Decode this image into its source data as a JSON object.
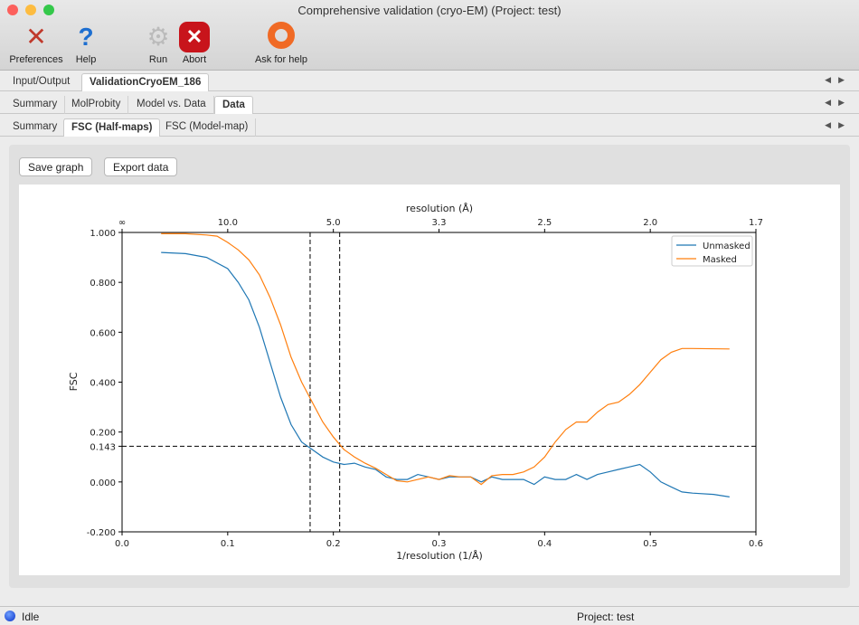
{
  "window": {
    "title": "Comprehensive validation (cryo-EM) (Project: test)"
  },
  "toolbar": [
    {
      "label": "Preferences",
      "icon": "tools-icon"
    },
    {
      "label": "Help",
      "icon": "help-icon"
    },
    {
      "label": "Run",
      "icon": "gear-icon"
    },
    {
      "label": "Abort",
      "icon": "abort-icon"
    },
    {
      "label": "Ask for help",
      "icon": "lifebuoy-icon"
    }
  ],
  "tabs1": [
    "Input/Output",
    "ValidationCryoEM_186"
  ],
  "tabs2": [
    "Summary",
    "MolProbity",
    "Model vs. Data",
    "Data"
  ],
  "tabs3": [
    "Summary",
    "FSC (Half-maps)",
    "FSC (Model-map)"
  ],
  "buttons": {
    "save": "Save graph",
    "export": "Export data"
  },
  "status": {
    "state": "Idle",
    "project": "Project: test"
  },
  "chart_data": {
    "type": "line",
    "xlabel": "1/resolution (1/Å)",
    "ylabel": "FSC",
    "top_xlabel": "resolution (Å)",
    "xlim": [
      0,
      0.6
    ],
    "ylim": [
      -0.2,
      1.0
    ],
    "xticks": [
      "0.0",
      "0.1",
      "0.2",
      "0.3",
      "0.4",
      "0.5",
      "0.6"
    ],
    "yticks": [
      "-0.200",
      "0.000",
      "0.200",
      "0.400",
      "0.600",
      "0.800",
      "1.000"
    ],
    "top_xticks": [
      "∞",
      "10.0",
      "5.0",
      "3.3",
      "2.5",
      "2.0",
      "1.7"
    ],
    "threshold": {
      "y": 0.143,
      "label": "0.143"
    },
    "vlines": [
      0.178,
      0.206
    ],
    "legend": "top-right",
    "colors": {
      "Unmasked": "#1f77b4",
      "Masked": "#ff7f0e"
    },
    "series": [
      {
        "name": "Unmasked",
        "x": [
          0.037,
          0.06,
          0.08,
          0.1,
          0.11,
          0.12,
          0.13,
          0.14,
          0.15,
          0.16,
          0.17,
          0.18,
          0.19,
          0.2,
          0.21,
          0.22,
          0.23,
          0.24,
          0.25,
          0.26,
          0.27,
          0.28,
          0.29,
          0.3,
          0.31,
          0.32,
          0.33,
          0.34,
          0.35,
          0.36,
          0.37,
          0.38,
          0.39,
          0.4,
          0.41,
          0.42,
          0.43,
          0.44,
          0.45,
          0.46,
          0.47,
          0.48,
          0.49,
          0.5,
          0.51,
          0.52,
          0.53,
          0.54,
          0.56,
          0.575
        ],
        "y": [
          0.92,
          0.915,
          0.9,
          0.855,
          0.8,
          0.73,
          0.62,
          0.48,
          0.34,
          0.23,
          0.16,
          0.13,
          0.1,
          0.08,
          0.07,
          0.075,
          0.06,
          0.05,
          0.02,
          0.01,
          0.01,
          0.03,
          0.02,
          0.01,
          0.02,
          0.02,
          0.02,
          0.0,
          0.02,
          0.01,
          0.01,
          0.01,
          -0.01,
          0.02,
          0.01,
          0.01,
          0.03,
          0.01,
          0.03,
          0.04,
          0.05,
          0.06,
          0.07,
          0.04,
          0.0,
          -0.02,
          -0.04,
          -0.045,
          -0.05,
          -0.06
        ]
      },
      {
        "name": "Masked",
        "x": [
          0.037,
          0.06,
          0.08,
          0.09,
          0.1,
          0.11,
          0.12,
          0.13,
          0.14,
          0.15,
          0.16,
          0.17,
          0.18,
          0.19,
          0.2,
          0.21,
          0.22,
          0.23,
          0.24,
          0.25,
          0.26,
          0.27,
          0.28,
          0.29,
          0.3,
          0.31,
          0.32,
          0.33,
          0.34,
          0.35,
          0.36,
          0.37,
          0.38,
          0.39,
          0.4,
          0.41,
          0.42,
          0.43,
          0.44,
          0.45,
          0.46,
          0.47,
          0.48,
          0.49,
          0.5,
          0.51,
          0.52,
          0.53,
          0.54,
          0.575
        ],
        "y": [
          0.995,
          0.995,
          0.99,
          0.985,
          0.96,
          0.93,
          0.89,
          0.83,
          0.74,
          0.63,
          0.5,
          0.4,
          0.32,
          0.24,
          0.18,
          0.13,
          0.1,
          0.075,
          0.055,
          0.03,
          0.005,
          0.0,
          0.01,
          0.02,
          0.01,
          0.025,
          0.02,
          0.02,
          -0.01,
          0.025,
          0.03,
          0.03,
          0.04,
          0.06,
          0.1,
          0.16,
          0.21,
          0.24,
          0.24,
          0.28,
          0.31,
          0.32,
          0.35,
          0.39,
          0.44,
          0.49,
          0.52,
          0.535,
          0.535,
          0.533
        ]
      }
    ]
  }
}
